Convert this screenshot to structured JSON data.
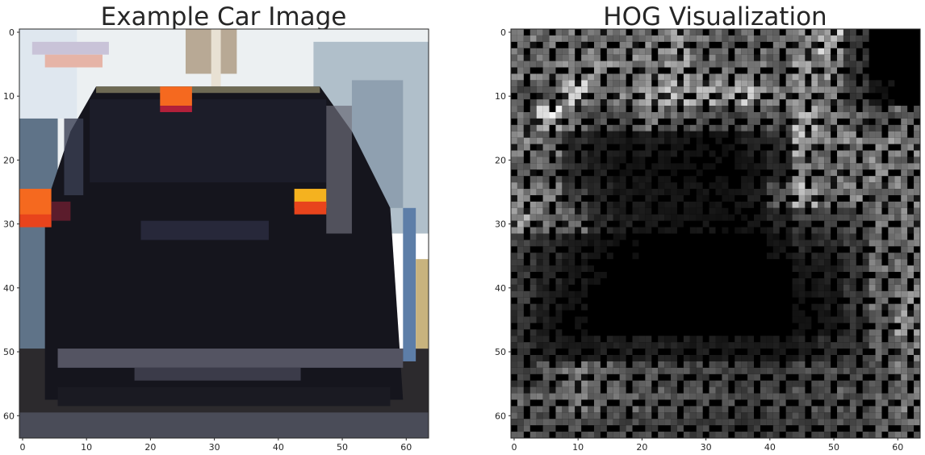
{
  "chart_data": [
    {
      "type": "image",
      "title": "Example Car Image",
      "xlabel": "",
      "ylabel": "",
      "xlim": [
        -0.5,
        63.5
      ],
      "ylim": [
        63.5,
        -0.5
      ],
      "x_ticks": [
        0,
        10,
        20,
        30,
        40,
        50,
        60
      ],
      "y_ticks": [
        0,
        10,
        20,
        30,
        40,
        50,
        60
      ],
      "grid": false,
      "colors": {
        "sky": "#ecf0f2",
        "car_body": "#15151d",
        "tail_light": "#f5691f",
        "brake_light": "#e8441c",
        "road": "#2c2a2d",
        "bumper": "#545462",
        "tree_left": "#5f7388",
        "tree_right": "#a6b6c3"
      }
    },
    {
      "type": "heatmap",
      "title": "HOG Visualization",
      "xlabel": "",
      "ylabel": "",
      "xlim": [
        -0.5,
        63.5
      ],
      "ylim": [
        63.5,
        -0.5
      ],
      "x_ticks": [
        0,
        10,
        20,
        30,
        40,
        50,
        60
      ],
      "y_ticks": [
        0,
        10,
        20,
        30,
        40,
        50,
        60
      ],
      "grid": false,
      "cell_size": 4,
      "colormap": "gray",
      "colors": {
        "background": "#000000",
        "peak": "#ffffff"
      },
      "cell_intensity": [
        [
          0.62,
          0.55,
          0.58,
          0.6,
          0.55,
          0.62,
          0.72,
          0.58,
          0.52,
          0.55,
          0.5,
          0.62,
          0.88,
          0.3,
          0.05,
          0.0
        ],
        [
          0.6,
          0.58,
          0.62,
          0.68,
          0.65,
          0.7,
          0.72,
          0.62,
          0.58,
          0.6,
          0.52,
          0.7,
          0.7,
          0.28,
          0.05,
          0.0
        ],
        [
          0.4,
          0.5,
          0.95,
          0.68,
          0.64,
          0.78,
          0.82,
          0.82,
          0.8,
          0.86,
          0.62,
          0.66,
          0.62,
          0.3,
          0.1,
          0.05
        ],
        [
          0.52,
          1.0,
          0.55,
          0.38,
          0.42,
          0.55,
          0.5,
          0.4,
          0.36,
          0.42,
          0.45,
          0.82,
          0.58,
          0.5,
          0.4,
          0.52
        ],
        [
          0.62,
          0.58,
          0.22,
          0.15,
          0.12,
          0.14,
          0.12,
          0.1,
          0.1,
          0.16,
          0.24,
          0.85,
          0.62,
          0.64,
          0.68,
          0.62
        ],
        [
          0.5,
          0.5,
          0.22,
          0.15,
          0.1,
          0.1,
          0.08,
          0.08,
          0.08,
          0.1,
          0.18,
          0.62,
          0.58,
          0.58,
          0.66,
          0.58
        ],
        [
          0.62,
          0.58,
          0.3,
          0.18,
          0.12,
          0.12,
          0.1,
          0.1,
          0.1,
          0.14,
          0.48,
          0.82,
          0.52,
          0.64,
          0.6,
          0.62
        ],
        [
          0.75,
          0.58,
          0.52,
          0.22,
          0.15,
          0.12,
          0.1,
          0.1,
          0.08,
          0.1,
          0.18,
          0.32,
          0.32,
          0.38,
          0.55,
          0.6
        ],
        [
          0.32,
          0.22,
          0.15,
          0.1,
          0.08,
          0.06,
          0.06,
          0.06,
          0.06,
          0.06,
          0.1,
          0.2,
          0.22,
          0.3,
          0.5,
          0.58
        ],
        [
          0.28,
          0.18,
          0.12,
          0.08,
          0.05,
          0.04,
          0.04,
          0.04,
          0.04,
          0.04,
          0.06,
          0.12,
          0.15,
          0.28,
          0.55,
          0.6
        ],
        [
          0.3,
          0.16,
          0.1,
          0.06,
          0.04,
          0.03,
          0.03,
          0.03,
          0.03,
          0.03,
          0.05,
          0.1,
          0.14,
          0.3,
          0.55,
          0.7
        ],
        [
          0.25,
          0.14,
          0.08,
          0.05,
          0.03,
          0.02,
          0.02,
          0.02,
          0.02,
          0.02,
          0.04,
          0.08,
          0.12,
          0.24,
          0.48,
          0.72
        ],
        [
          0.26,
          0.18,
          0.14,
          0.15,
          0.16,
          0.18,
          0.16,
          0.14,
          0.14,
          0.12,
          0.12,
          0.16,
          0.22,
          0.28,
          0.45,
          0.58
        ],
        [
          0.3,
          0.42,
          0.58,
          0.5,
          0.46,
          0.44,
          0.38,
          0.36,
          0.34,
          0.32,
          0.3,
          0.36,
          0.4,
          0.36,
          0.42,
          0.58
        ],
        [
          0.48,
          0.5,
          0.55,
          0.52,
          0.48,
          0.46,
          0.42,
          0.4,
          0.38,
          0.36,
          0.36,
          0.42,
          0.46,
          0.4,
          0.48,
          0.6
        ],
        [
          0.42,
          0.4,
          0.42,
          0.4,
          0.38,
          0.36,
          0.34,
          0.32,
          0.3,
          0.3,
          0.32,
          0.36,
          0.4,
          0.38,
          0.44,
          0.55
        ]
      ]
    }
  ]
}
